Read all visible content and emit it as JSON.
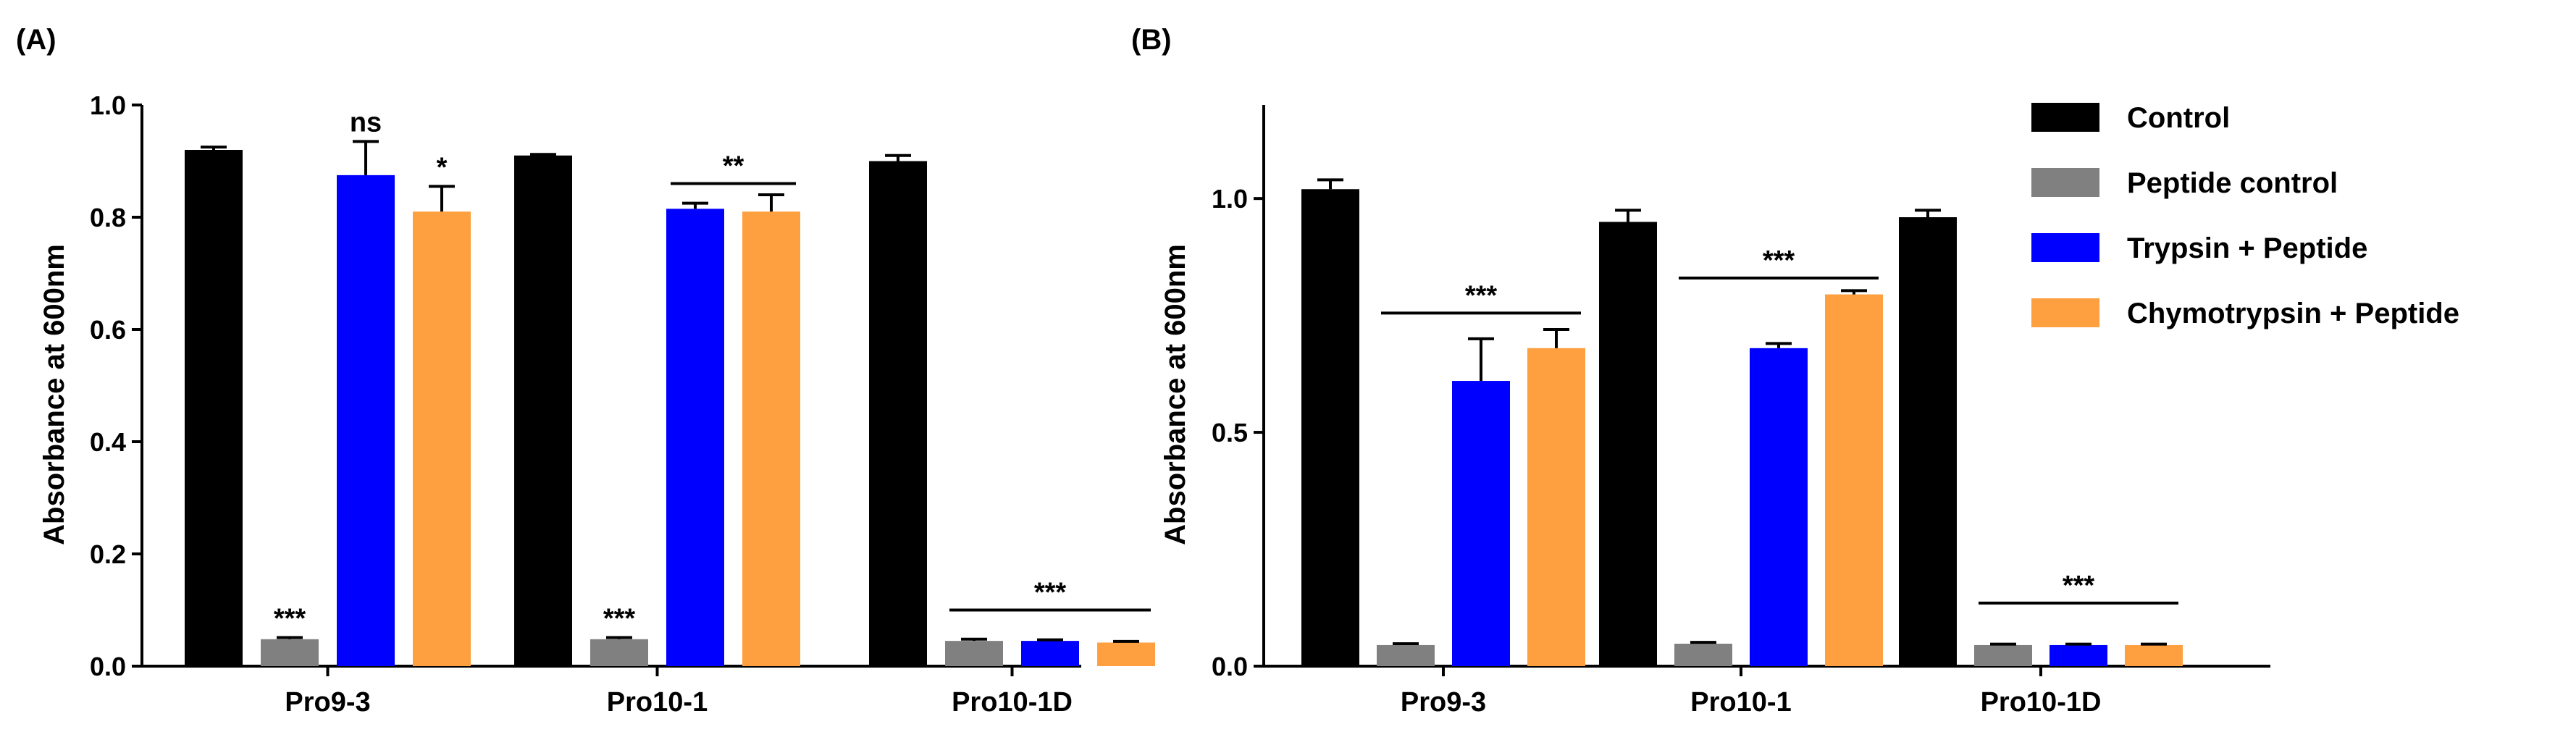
{
  "figure": {
    "legend": [
      {
        "label": "Control",
        "color": "#000000"
      },
      {
        "label": "Peptide control",
        "color": "#808080"
      },
      {
        "label": "Trypsin + Peptide",
        "color": "#0000ff"
      },
      {
        "label": "Chymotrypsin + Peptide",
        "color": "#ffa040"
      }
    ]
  },
  "chart_data": [
    {
      "panel": "(A)",
      "type": "bar",
      "categories": [
        "Pro9-3",
        "Pro10-1",
        "Pro10-1D"
      ],
      "ylabel": "Absorbance at 600nm",
      "xlabel": "",
      "ylim": [
        0,
        1.0
      ],
      "yticks": [
        "0.0",
        "0.2",
        "0.4",
        "0.6",
        "0.8",
        "1.0"
      ],
      "ytick_values": [
        0,
        0.2,
        0.4,
        0.6,
        0.8,
        1.0
      ],
      "series": [
        {
          "name": "Control",
          "color": "#000000",
          "values": [
            0.92,
            0.91,
            0.9
          ],
          "errors": [
            0.005,
            0.002,
            0.01
          ]
        },
        {
          "name": "Peptide control",
          "color": "#808080",
          "values": [
            0.048,
            0.048,
            0.045
          ],
          "errors": [
            0.003,
            0.003,
            0.003
          ]
        },
        {
          "name": "Trypsin + Peptide",
          "color": "#0000ff",
          "values": [
            0.875,
            0.815,
            0.045
          ],
          "errors": [
            0.06,
            0.01,
            0.002
          ]
        },
        {
          "name": "Chymotrypsin + Peptide",
          "color": "#ffa040",
          "values": [
            0.81,
            0.81,
            0.042
          ],
          "errors": [
            0.045,
            0.03,
            0.002
          ]
        }
      ],
      "annotations": [
        {
          "text": "***",
          "category": 0,
          "series": 1,
          "type": "single"
        },
        {
          "text": "ns",
          "category": 0,
          "series": 2,
          "type": "single"
        },
        {
          "text": "*",
          "category": 0,
          "series": 3,
          "type": "single"
        },
        {
          "text": "***",
          "category": 1,
          "series": 1,
          "type": "single"
        },
        {
          "text": "**",
          "category": 1,
          "series_from": 2,
          "series_to": 3,
          "y": 0.86,
          "type": "bracket"
        },
        {
          "text": "***",
          "category": 2,
          "series_from": 1,
          "series_to": 3,
          "y": 0.1,
          "type": "bracket"
        }
      ]
    },
    {
      "panel": "(B)",
      "type": "bar",
      "categories": [
        "Pro9-3",
        "Pro10-1",
        "Pro10-1D"
      ],
      "ylabel": "Absorbance at 600nm",
      "xlabel": "",
      "ylim": [
        0,
        1.2
      ],
      "yticks": [
        "0.0",
        "0.5",
        "1.0"
      ],
      "ytick_values": [
        0,
        0.5,
        1.0
      ],
      "series": [
        {
          "name": "Control",
          "color": "#000000",
          "values": [
            1.02,
            0.95,
            0.96
          ],
          "errors": [
            0.02,
            0.025,
            0.015
          ]
        },
        {
          "name": "Peptide control",
          "color": "#808080",
          "values": [
            0.045,
            0.048,
            0.045
          ],
          "errors": [
            0.003,
            0.003,
            0.002
          ]
        },
        {
          "name": "Trypsin + Peptide",
          "color": "#0000ff",
          "values": [
            0.61,
            0.68,
            0.045
          ],
          "errors": [
            0.09,
            0.01,
            0.002
          ]
        },
        {
          "name": "Chymotrypsin + Peptide",
          "color": "#ffa040",
          "values": [
            0.68,
            0.795,
            0.045
          ],
          "errors": [
            0.04,
            0.008,
            0.002
          ]
        }
      ],
      "annotations": [
        {
          "text": "***",
          "category": 0,
          "series_from": 1,
          "series_to": 3,
          "y": 0.755,
          "type": "bracket"
        },
        {
          "text": "***",
          "category": 1,
          "series_from": 1,
          "series_to": 3,
          "y": 0.83,
          "type": "bracket"
        },
        {
          "text": "***",
          "category": 2,
          "series_from": 1,
          "series_to": 3,
          "y": 0.135,
          "type": "bracket"
        }
      ]
    }
  ]
}
